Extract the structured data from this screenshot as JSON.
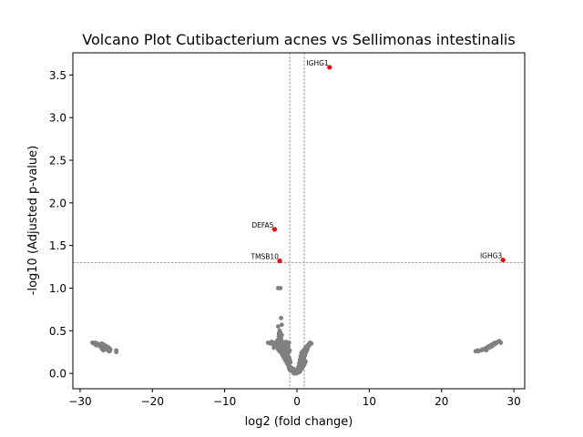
{
  "chart_data": {
    "type": "scatter",
    "title": "Volcano Plot Cutibacterium acnes vs Sellimonas intestinalis",
    "xlabel": "log2 (fold change)",
    "ylabel": "-log10 (Adjusted p-value)",
    "xlim": [
      -31,
      31.5
    ],
    "ylim": [
      -0.18,
      3.76
    ],
    "xticks": [
      -30,
      -20,
      -10,
      0,
      10,
      20,
      30
    ],
    "xtick_labels": [
      "−30",
      "−20",
      "−10",
      "0",
      "10",
      "20",
      "30"
    ],
    "yticks": [
      0.0,
      0.5,
      1.0,
      1.5,
      2.0,
      2.5,
      3.0,
      3.5
    ],
    "ytick_labels": [
      "0.0",
      "0.5",
      "1.0",
      "1.5",
      "2.0",
      "2.5",
      "3.0",
      "3.5"
    ],
    "thresholds": {
      "x": [
        -1,
        1
      ],
      "y": 1.3
    },
    "grid": false,
    "legend": "none",
    "colors": {
      "significant": "#ff0000",
      "not_significant": "#808080",
      "threshold": "#808080"
    },
    "significant": [
      {
        "label": "IGHG1",
        "x": 4.5,
        "y": 3.59
      },
      {
        "label": "DEFA5",
        "x": -3.1,
        "y": 1.69
      },
      {
        "label": "TMSB10",
        "x": -2.4,
        "y": 1.32
      },
      {
        "label": "IGHG3",
        "x": 28.5,
        "y": 1.33
      }
    ],
    "not_significant": {
      "x": [
        -28.3,
        -28.1,
        -27.9,
        -27.8,
        -27.6,
        -27.5,
        -27.4,
        -27.3,
        -27.2,
        -27.0,
        -26.9,
        -26.8,
        -26.7,
        -26.6,
        -26.5,
        -26.4,
        -26.3,
        -26.2,
        -26.1,
        -26.0,
        -25.9,
        -25.0,
        -25.0,
        -25.8,
        -27.8,
        -27.0,
        -26.3,
        -26.8,
        -26.0,
        -26.5,
        -4.0,
        -3.7,
        -3.5,
        -3.3,
        -3.1,
        -2.9,
        -2.7,
        -2.5,
        -2.3,
        -2.1,
        -1.9,
        -1.7,
        -1.5,
        -1.3,
        -1.1,
        -3.0,
        -2.6,
        -2.2,
        -1.8,
        -1.4,
        -3.2,
        -2.8,
        -2.4,
        -2.0,
        -1.6,
        -1.2,
        -2.6,
        -2.2,
        -1.8,
        -1.4,
        -2.4,
        -2.0,
        -1.6,
        -1.2,
        -1.0,
        -2.2,
        -1.8,
        -1.4,
        -1.1,
        -2.0,
        -1.6,
        -1.3,
        -1.8,
        -1.4,
        -1.1,
        -1.6,
        -1.3,
        -1.0,
        -1.4,
        -1.2,
        -0.9,
        -1.2,
        -1.0,
        -1.1,
        -0.8,
        -1.0,
        -0.7,
        -0.8,
        -0.6,
        -0.5,
        -0.4,
        -0.3,
        -0.2,
        -0.1,
        0.0,
        0.1,
        0.2,
        0.3,
        0.4,
        0.5,
        0.6,
        0.7,
        0.8,
        0.9,
        1.0,
        1.1,
        1.2,
        0.6,
        0.8,
        1.0,
        1.2,
        1.4,
        1.6,
        1.8,
        2.0,
        0.5,
        0.7,
        0.9,
        1.1,
        1.3,
        1.5,
        1.7,
        0.4,
        0.6,
        0.8,
        1.0,
        1.2,
        1.4,
        0.3,
        0.5,
        0.7,
        0.9,
        1.1,
        0.2,
        0.4,
        0.6,
        0.8,
        1.0,
        0.1,
        0.3,
        0.5,
        0.7,
        -0.6,
        -0.4,
        -0.2,
        0.0,
        0.2,
        0.4,
        -0.3,
        -0.1,
        0.1,
        0.3,
        -0.2,
        0.0,
        0.2,
        -2.6,
        -2.3,
        -2.2,
        -2.1,
        -2.6,
        -2.4,
        -2.5,
        -2.1,
        -2.3,
        -2.4,
        -2.6,
        -2.2,
        -2.0,
        -2.7,
        -2.5,
        -2.3,
        -2.1,
        -1.9,
        -2.5,
        -2.3,
        24.7,
        25.0,
        25.1,
        25.5,
        25.8,
        26.0,
        26.2,
        26.4,
        26.6,
        26.8,
        27.0,
        27.2,
        27.4,
        27.6,
        27.8,
        28.0,
        28.2,
        26.5,
        27.0,
        27.5,
        26.2,
        26.8,
        27.3,
        25.6,
        26.1
      ],
      "y": [
        0.36,
        0.35,
        0.36,
        0.34,
        0.35,
        0.33,
        0.34,
        0.32,
        0.33,
        0.35,
        0.31,
        0.34,
        0.3,
        0.33,
        0.29,
        0.32,
        0.28,
        0.31,
        0.27,
        0.3,
        0.26,
        0.27,
        0.25,
        0.28,
        0.33,
        0.29,
        0.3,
        0.27,
        0.26,
        0.31,
        0.36,
        0.35,
        0.37,
        0.34,
        0.36,
        0.33,
        0.35,
        0.37,
        0.34,
        0.36,
        0.33,
        0.35,
        0.37,
        0.34,
        0.36,
        0.32,
        0.33,
        0.31,
        0.3,
        0.32,
        0.3,
        0.31,
        0.29,
        0.32,
        0.3,
        0.31,
        0.28,
        0.29,
        0.27,
        0.28,
        0.26,
        0.27,
        0.25,
        0.26,
        0.27,
        0.24,
        0.23,
        0.24,
        0.25,
        0.21,
        0.2,
        0.22,
        0.18,
        0.17,
        0.19,
        0.15,
        0.14,
        0.16,
        0.12,
        0.11,
        0.13,
        0.09,
        0.08,
        0.06,
        0.07,
        0.04,
        0.05,
        0.03,
        0.02,
        0.01,
        0.0,
        0.01,
        0.02,
        0.0,
        0.01,
        0.02,
        0.01,
        0.03,
        0.02,
        0.04,
        0.05,
        0.06,
        0.07,
        0.09,
        0.1,
        0.12,
        0.14,
        0.24,
        0.26,
        0.28,
        0.3,
        0.32,
        0.34,
        0.36,
        0.35,
        0.2,
        0.22,
        0.24,
        0.26,
        0.28,
        0.3,
        0.33,
        0.16,
        0.18,
        0.2,
        0.22,
        0.24,
        0.27,
        0.12,
        0.14,
        0.16,
        0.18,
        0.21,
        0.08,
        0.1,
        0.12,
        0.15,
        0.17,
        0.05,
        0.07,
        0.09,
        0.11,
        0.04,
        0.05,
        0.03,
        0.02,
        0.04,
        0.06,
        0.01,
        0.02,
        0.01,
        0.03,
        0.0,
        0.01,
        0.02,
        1.0,
        1.0,
        0.65,
        0.57,
        0.55,
        0.5,
        0.46,
        0.45,
        0.4,
        0.42,
        0.38,
        0.41,
        0.37,
        0.39,
        0.43,
        0.44,
        0.36,
        0.35,
        0.47,
        0.48,
        0.26,
        0.27,
        0.26,
        0.27,
        0.28,
        0.29,
        0.3,
        0.31,
        0.32,
        0.33,
        0.34,
        0.35,
        0.36,
        0.36,
        0.37,
        0.38,
        0.36,
        0.3,
        0.32,
        0.35,
        0.27,
        0.31,
        0.34,
        0.28,
        0.29
      ]
    }
  }
}
